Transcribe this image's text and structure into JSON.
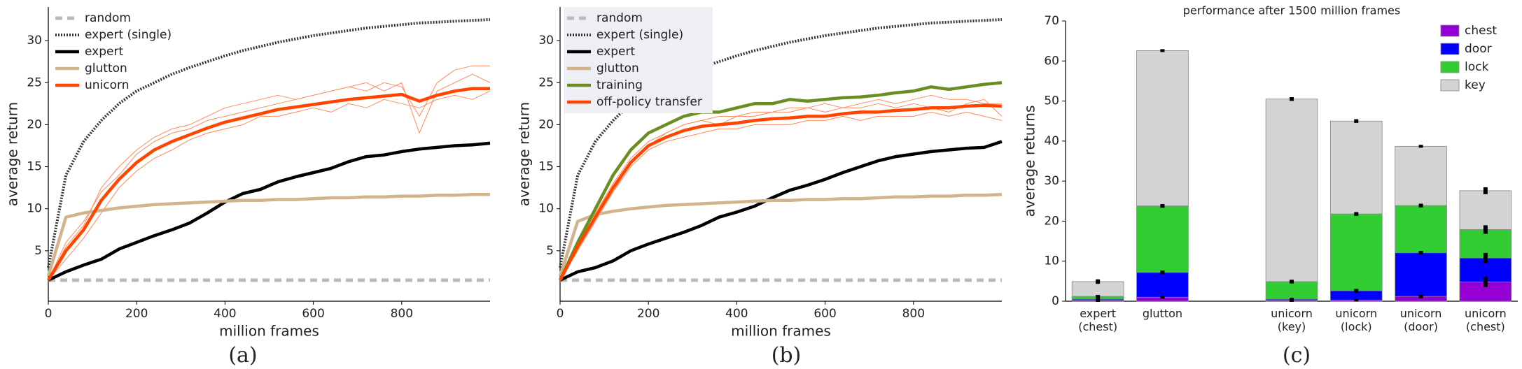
{
  "chart_data": [
    {
      "type": "line",
      "caption": "(a)",
      "xlabel": "million frames",
      "ylabel": "average return",
      "xlim": [
        0,
        1000
      ],
      "ylim": [
        -1,
        34
      ],
      "xticks": [
        0,
        200,
        400,
        600,
        800
      ],
      "yticks": [
        5,
        10,
        15,
        20,
        25,
        30
      ],
      "legend": "upper left",
      "legend_box": false,
      "x": [
        0,
        40,
        80,
        120,
        160,
        200,
        240,
        280,
        320,
        360,
        400,
        440,
        480,
        520,
        560,
        600,
        640,
        680,
        720,
        760,
        800,
        840,
        880,
        920,
        960,
        1000
      ],
      "runs_color": "#ff8a5c",
      "runs": [
        {
          "values": [
            1.5,
            6,
            8.5,
            12,
            14,
            16.5,
            18,
            19,
            19.5,
            20.5,
            21,
            21.5,
            22,
            22.5,
            23,
            23.5,
            24,
            24.5,
            25,
            24,
            25,
            19,
            24,
            25,
            26,
            25
          ]
        },
        {
          "values": [
            1.5,
            4,
            6.5,
            9.5,
            12.5,
            14.5,
            16,
            17,
            18.2,
            19,
            19.5,
            20,
            21,
            21,
            21.5,
            22,
            21.5,
            22.5,
            22,
            23,
            22.5,
            22,
            23,
            23.5,
            23,
            24
          ]
        },
        {
          "values": [
            1.5,
            5.5,
            8,
            12.5,
            15,
            17,
            18.5,
            19.5,
            20,
            21,
            22,
            22.5,
            23,
            23.5,
            23,
            23.5,
            24,
            24.5,
            24,
            25,
            24.5,
            21,
            25,
            26.5,
            27,
            27
          ]
        }
      ],
      "series": [
        {
          "name": "random",
          "color": "#bbbbbb",
          "dash": "dashed",
          "values": [
            1.5,
            1.5,
            1.5,
            1.5,
            1.5,
            1.5,
            1.5,
            1.5,
            1.5,
            1.5,
            1.5,
            1.5,
            1.5,
            1.5,
            1.5,
            1.5,
            1.5,
            1.5,
            1.5,
            1.5,
            1.5,
            1.5,
            1.5,
            1.5,
            1.5,
            1.5
          ]
        },
        {
          "name": "expert (single)",
          "color": "#333333",
          "dash": "dotted",
          "values": [
            3,
            14,
            18,
            20.5,
            22.5,
            24,
            25,
            26,
            26.8,
            27.5,
            28.2,
            28.8,
            29.3,
            29.8,
            30.2,
            30.6,
            30.9,
            31.2,
            31.5,
            31.7,
            31.9,
            32.1,
            32.2,
            32.3,
            32.4,
            32.5
          ]
        },
        {
          "name": "expert",
          "color": "#000000",
          "dash": "solid",
          "values": [
            1.5,
            2.5,
            3.3,
            4,
            5.2,
            6,
            6.8,
            7.5,
            8.3,
            9.5,
            10.8,
            11.8,
            12.3,
            13.2,
            13.8,
            14.3,
            14.8,
            15.6,
            16.2,
            16.4,
            16.8,
            17.1,
            17.3,
            17.5,
            17.6,
            17.8
          ]
        },
        {
          "name": "glutton",
          "color": "#d2b48c",
          "dash": "solid",
          "values": [
            2,
            9,
            9.5,
            9.8,
            10.1,
            10.3,
            10.5,
            10.6,
            10.7,
            10.8,
            10.9,
            11,
            11,
            11.1,
            11.1,
            11.2,
            11.3,
            11.3,
            11.4,
            11.4,
            11.5,
            11.5,
            11.6,
            11.6,
            11.7,
            11.7
          ]
        },
        {
          "name": "unicorn",
          "color": "#ff4500",
          "dash": "solid",
          "values": [
            1.5,
            5,
            7.5,
            11,
            13.5,
            15.5,
            17,
            18,
            18.8,
            19.6,
            20.3,
            20.8,
            21.3,
            21.8,
            22.1,
            22.4,
            22.7,
            23,
            23.2,
            23.4,
            23.6,
            22.8,
            23.5,
            24,
            24.3,
            24.3
          ]
        }
      ]
    },
    {
      "type": "line",
      "caption": "(b)",
      "xlabel": "million frames",
      "ylabel": "average return",
      "xlim": [
        0,
        1000
      ],
      "ylim": [
        -1,
        34
      ],
      "xticks": [
        0,
        200,
        400,
        600,
        800
      ],
      "yticks": [
        5,
        10,
        15,
        20,
        25,
        30
      ],
      "legend": "upper left",
      "legend_box": true,
      "x": [
        0,
        40,
        80,
        120,
        160,
        200,
        240,
        280,
        320,
        360,
        400,
        440,
        480,
        520,
        560,
        600,
        640,
        680,
        720,
        760,
        800,
        840,
        880,
        920,
        960,
        1000
      ],
      "runs_color": "#ff8a5c",
      "runs": [
        {
          "values": [
            1.5,
            6,
            9.5,
            13,
            16,
            18,
            19,
            20,
            20.5,
            21,
            21,
            21.5,
            21.5,
            22,
            22,
            22.5,
            22,
            22.5,
            23,
            22.5,
            23,
            23.5,
            23,
            23,
            22.5,
            22.5
          ]
        },
        {
          "values": [
            1.5,
            5,
            8.5,
            12,
            15,
            17,
            18,
            18.5,
            19,
            19.5,
            19.5,
            20,
            20,
            20,
            20.5,
            20.5,
            21,
            20.5,
            21,
            21,
            21,
            21.5,
            21,
            21.5,
            21,
            20.5
          ]
        },
        {
          "values": [
            1.5,
            5.5,
            9,
            12,
            15.5,
            17.5,
            19,
            20,
            20.5,
            20,
            21,
            21,
            21.5,
            21.5,
            22,
            21.5,
            22,
            22,
            22.5,
            22,
            22.5,
            22,
            21.5,
            22.5,
            23,
            21
          ]
        }
      ],
      "series": [
        {
          "name": "random",
          "color": "#bbbbbb",
          "dash": "dashed",
          "values": [
            1.5,
            1.5,
            1.5,
            1.5,
            1.5,
            1.5,
            1.5,
            1.5,
            1.5,
            1.5,
            1.5,
            1.5,
            1.5,
            1.5,
            1.5,
            1.5,
            1.5,
            1.5,
            1.5,
            1.5,
            1.5,
            1.5,
            1.5,
            1.5,
            1.5,
            1.5
          ]
        },
        {
          "name": "expert (single)",
          "color": "#333333",
          "dash": "dotted",
          "values": [
            3,
            14,
            18,
            20.5,
            22.5,
            24,
            25,
            26,
            26.8,
            27.5,
            28.2,
            28.8,
            29.3,
            29.8,
            30.2,
            30.6,
            30.9,
            31.2,
            31.5,
            31.7,
            31.9,
            32.1,
            32.2,
            32.3,
            32.4,
            32.5
          ]
        },
        {
          "name": "expert",
          "color": "#000000",
          "dash": "solid",
          "values": [
            1.5,
            2.5,
            3,
            3.8,
            5,
            5.8,
            6.5,
            7.2,
            8,
            9,
            9.6,
            10.3,
            11.3,
            12.2,
            12.8,
            13.5,
            14.3,
            15,
            15.7,
            16.2,
            16.5,
            16.8,
            17,
            17.2,
            17.3,
            18
          ]
        },
        {
          "name": "glutton",
          "color": "#d2b48c",
          "dash": "solid",
          "values": [
            2,
            8.5,
            9.3,
            9.7,
            10,
            10.2,
            10.4,
            10.5,
            10.6,
            10.7,
            10.8,
            10.9,
            11,
            11,
            11.1,
            11.1,
            11.2,
            11.2,
            11.3,
            11.4,
            11.4,
            11.5,
            11.5,
            11.6,
            11.6,
            11.7
          ]
        },
        {
          "name": "training",
          "color": "#6b8e23",
          "dash": "solid",
          "values": [
            1.5,
            6,
            10,
            14,
            17,
            19,
            20,
            21,
            21.5,
            21.5,
            22,
            22.5,
            22.5,
            23,
            22.8,
            23,
            23.2,
            23.3,
            23.5,
            23.8,
            24,
            24.5,
            24.2,
            24.5,
            24.8,
            25
          ]
        },
        {
          "name": "off-policy transfer",
          "color": "#ff4500",
          "dash": "solid",
          "values": [
            1.5,
            5.5,
            9,
            12.5,
            15.5,
            17.5,
            18.5,
            19.3,
            19.8,
            20,
            20.2,
            20.5,
            20.7,
            20.8,
            21,
            21,
            21.3,
            21.5,
            21.5,
            21.7,
            21.8,
            22,
            22,
            22.2,
            22.3,
            22.2
          ]
        }
      ]
    },
    {
      "type": "stacked_bar",
      "caption": "(c)",
      "title": "performance after 1500 million frames",
      "ylabel": "average returns",
      "ylim": [
        0,
        70
      ],
      "yticks": [
        0,
        10,
        20,
        30,
        40,
        50,
        60,
        70
      ],
      "legend": "upper right",
      "categories": [
        "expert\n(chest)",
        "glutton",
        null,
        "unicorn\n(key)",
        "unicorn\n(lock)",
        "unicorn\n(door)",
        "unicorn\n(chest)"
      ],
      "series": [
        {
          "name": "chest",
          "color": "#9400d3",
          "values": [
            0.2,
            1,
            null,
            0.2,
            0.3,
            1.2,
            4.8
          ],
          "errors": [
            0.1,
            0.1,
            null,
            0.1,
            0.1,
            0.2,
            1
          ]
        },
        {
          "name": "door",
          "color": "#0000ff",
          "values": [
            0.3,
            6.2,
            null,
            0.3,
            2.3,
            10.9,
            6
          ],
          "errors": [
            0.1,
            0.2,
            null,
            0.1,
            0.2,
            0.2,
            1
          ]
        },
        {
          "name": "lock",
          "color": "#32cd32",
          "values": [
            0.7,
            16.6,
            null,
            4.4,
            19.2,
            11.8,
            7.1
          ],
          "errors": [
            0.1,
            0.2,
            null,
            0.2,
            0.2,
            0.2,
            0.8
          ]
        },
        {
          "name": "key",
          "color": "#d3d3d3",
          "values": [
            3.7,
            38.8,
            null,
            45.6,
            23.2,
            14.8,
            9.7
          ],
          "errors": [
            0.3,
            0.1,
            null,
            0.2,
            0.2,
            0.1,
            0.6
          ]
        }
      ]
    }
  ]
}
